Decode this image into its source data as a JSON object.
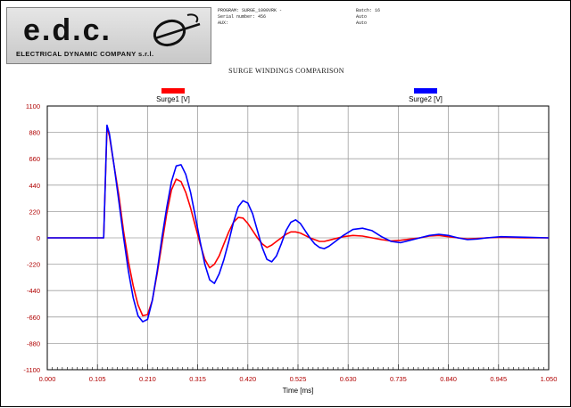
{
  "header": {
    "logo_text": "e.d.c.",
    "logo_subtitle": "ELECTRICAL DYNAMIC COMPANY s.r.l.",
    "program_label": "PROGRAM: SURGE_1000VRK -",
    "serial_label": "Serial number: 456",
    "aux_label": "AUX:",
    "batch_label": "Batch: 16",
    "batch_value": "Auto",
    "aux_value": "Auto"
  },
  "chart_data": {
    "type": "line",
    "title": "SURGE WINDINGS COMPARISON",
    "xlabel": "Time [ms]",
    "ylabel": "",
    "xlim": [
      0,
      1.05
    ],
    "ylim": [
      -1100,
      1100
    ],
    "x_ticks": [
      "0.000",
      "0.105",
      "0.210",
      "0.315",
      "0.420",
      "0.525",
      "0.630",
      "0.735",
      "0.840",
      "0.945",
      "1.050"
    ],
    "y_ticks": [
      "1100",
      "880",
      "660",
      "440",
      "220",
      "0",
      "-220",
      "-440",
      "-660",
      "-880",
      "-1100"
    ],
    "grid": true,
    "legend_position": "top",
    "series": [
      {
        "name": "Surge1 [V]",
        "color": "#ff0000",
        "x": [
          0,
          0.1,
          0.118,
          0.125,
          0.13,
          0.14,
          0.15,
          0.16,
          0.17,
          0.18,
          0.19,
          0.2,
          0.21,
          0.22,
          0.23,
          0.24,
          0.25,
          0.26,
          0.27,
          0.28,
          0.29,
          0.3,
          0.31,
          0.32,
          0.33,
          0.34,
          0.35,
          0.36,
          0.37,
          0.38,
          0.39,
          0.4,
          0.41,
          0.42,
          0.43,
          0.44,
          0.45,
          0.46,
          0.47,
          0.48,
          0.49,
          0.5,
          0.51,
          0.52,
          0.53,
          0.54,
          0.55,
          0.56,
          0.57,
          0.58,
          0.59,
          0.6,
          0.62,
          0.64,
          0.66,
          0.68,
          0.7,
          0.72,
          0.74,
          0.76,
          0.78,
          0.8,
          0.82,
          0.84,
          0.86,
          0.88,
          0.9,
          0.92,
          0.95,
          1.0,
          1.05
        ],
        "y": [
          0,
          0,
          0,
          920,
          850,
          600,
          350,
          50,
          -200,
          -400,
          -560,
          -650,
          -640,
          -520,
          -300,
          -50,
          200,
          400,
          490,
          470,
          380,
          250,
          100,
          -50,
          -180,
          -250,
          -220,
          -150,
          -50,
          50,
          130,
          170,
          165,
          120,
          60,
          0,
          -50,
          -80,
          -60,
          -30,
          0,
          30,
          50,
          50,
          40,
          20,
          0,
          -15,
          -30,
          -30,
          -20,
          -10,
          10,
          20,
          15,
          0,
          -15,
          -25,
          -20,
          -10,
          0,
          15,
          20,
          10,
          0,
          -10,
          -5,
          0,
          5,
          0,
          0
        ]
      },
      {
        "name": "Surge2 [V]",
        "color": "#0000ff",
        "x": [
          0,
          0.1,
          0.118,
          0.125,
          0.13,
          0.14,
          0.15,
          0.16,
          0.17,
          0.18,
          0.19,
          0.2,
          0.21,
          0.22,
          0.23,
          0.24,
          0.25,
          0.26,
          0.27,
          0.28,
          0.29,
          0.3,
          0.31,
          0.32,
          0.33,
          0.34,
          0.35,
          0.36,
          0.37,
          0.38,
          0.39,
          0.4,
          0.41,
          0.42,
          0.43,
          0.44,
          0.45,
          0.46,
          0.47,
          0.48,
          0.49,
          0.5,
          0.51,
          0.52,
          0.53,
          0.54,
          0.55,
          0.56,
          0.57,
          0.58,
          0.59,
          0.6,
          0.62,
          0.64,
          0.66,
          0.68,
          0.7,
          0.72,
          0.74,
          0.76,
          0.78,
          0.8,
          0.82,
          0.84,
          0.86,
          0.88,
          0.9,
          0.92,
          0.95,
          1.0,
          1.05
        ],
        "y": [
          0,
          0,
          0,
          940,
          870,
          600,
          300,
          0,
          -280,
          -500,
          -650,
          -700,
          -680,
          -520,
          -280,
          0,
          250,
          470,
          600,
          610,
          530,
          380,
          180,
          -30,
          -220,
          -350,
          -380,
          -300,
          -180,
          -30,
          130,
          260,
          310,
          290,
          200,
          60,
          -80,
          -180,
          -200,
          -150,
          -50,
          60,
          130,
          150,
          120,
          60,
          0,
          -50,
          -80,
          -90,
          -70,
          -40,
          20,
          70,
          80,
          60,
          10,
          -30,
          -40,
          -20,
          0,
          20,
          30,
          20,
          0,
          -15,
          -10,
          0,
          10,
          5,
          0
        ]
      }
    ]
  }
}
